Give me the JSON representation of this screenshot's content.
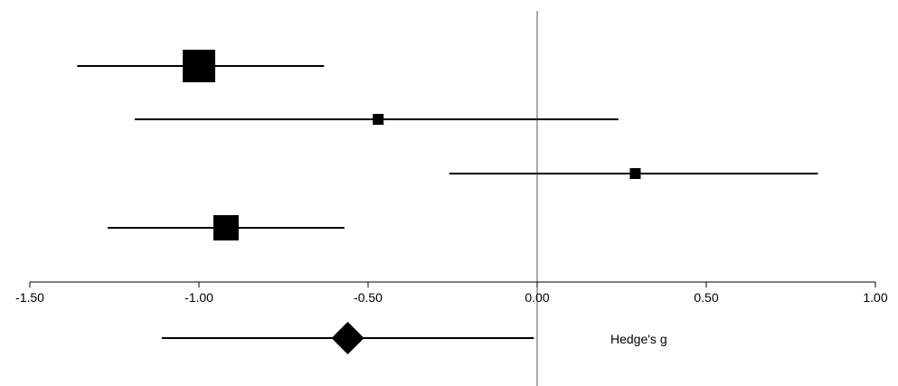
{
  "chart_data": {
    "type": "forest",
    "title": "",
    "xlabel": "Hedge's g",
    "ylabel": "",
    "xlim": [
      -1.5,
      1.0
    ],
    "x_ticks": [
      -1.5,
      -1.0,
      -0.5,
      0.0,
      0.5,
      1.0
    ],
    "x_tick_labels": [
      "-1.50",
      "-1.00",
      "-0.50",
      "0.00",
      "0.50",
      "1.00"
    ],
    "reference_line": 0.0,
    "grid": false,
    "studies": [
      {
        "g": -1.0,
        "ci_low": -1.36,
        "ci_high": -0.63,
        "weight": "large"
      },
      {
        "g": -0.47,
        "ci_low": -1.19,
        "ci_high": 0.24,
        "weight": "small"
      },
      {
        "g": 0.29,
        "ci_low": -0.26,
        "ci_high": 0.83,
        "weight": "small"
      },
      {
        "g": -0.92,
        "ci_low": -1.27,
        "ci_high": -0.57,
        "weight": "medium"
      }
    ],
    "pooled": {
      "g": -0.56,
      "ci_low": -1.11,
      "ci_high": -0.01
    },
    "colors": {
      "marks": "#000000",
      "reference_line": "#555555",
      "background": "#ffffff"
    }
  }
}
